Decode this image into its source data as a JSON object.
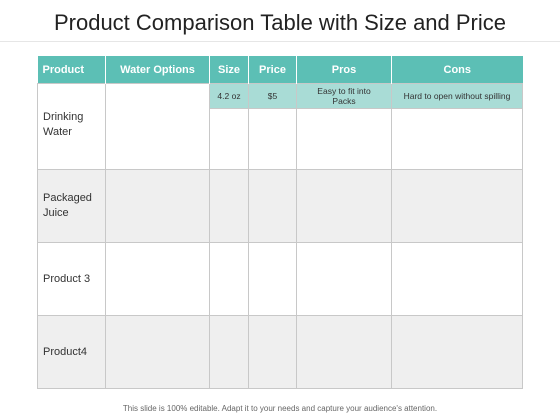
{
  "title": "Product Comparison Table with Size and Price",
  "table": {
    "headers": [
      "Product",
      "Water Options",
      "Size",
      "Price",
      "Pros",
      "Cons"
    ],
    "rows": [
      {
        "product": "Drinking Water",
        "water_options": "",
        "size": "4.2 oz",
        "price": "$5",
        "pros": "Easy to fit into Packs",
        "cons": "Hard to open without spilling"
      },
      {
        "product": "Packaged Juice",
        "water_options": "",
        "size": "",
        "price": "",
        "pros": "",
        "cons": ""
      },
      {
        "product": "Product 3",
        "water_options": "",
        "size": "",
        "price": "",
        "pros": "",
        "cons": ""
      },
      {
        "product": "Product4",
        "water_options": "",
        "size": "",
        "price": "",
        "pros": "",
        "cons": ""
      }
    ]
  },
  "colors": {
    "header": "#5cbfb5",
    "highlight": "#a9dcd6"
  },
  "footer": "This slide is 100% editable. Adapt it to your needs and capture your audience's attention."
}
